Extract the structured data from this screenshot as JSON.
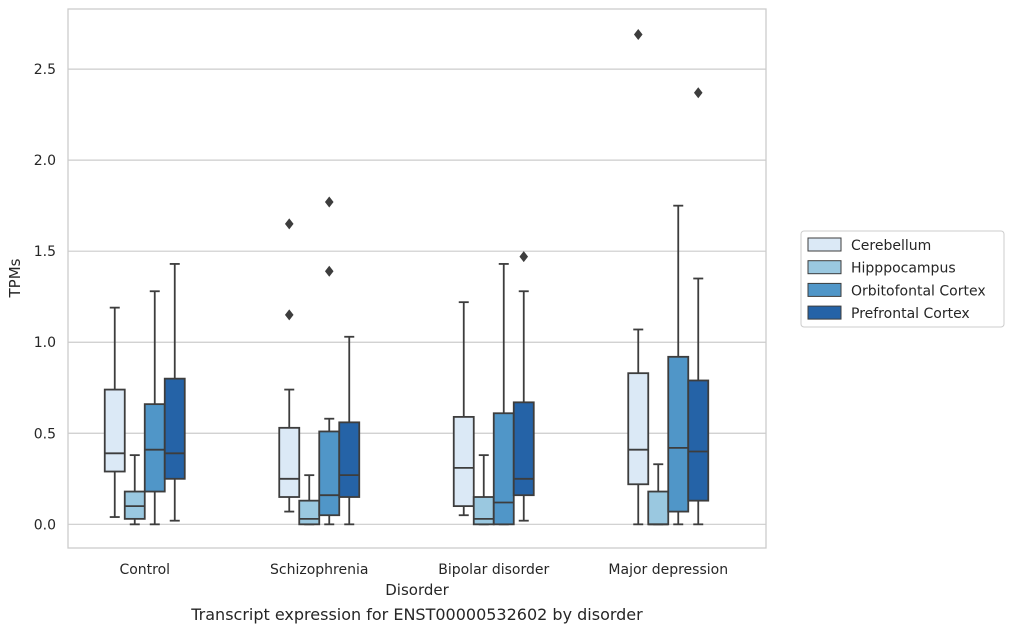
{
  "chart_data": {
    "type": "box",
    "xlabel": "Disorder",
    "ylabel": "TPMs",
    "caption": "Transcript expression for ENST00000532602 by disorder",
    "ylim": [
      -0.13,
      2.83
    ],
    "yticks": [
      0.0,
      0.5,
      1.0,
      1.5,
      2.0,
      2.5
    ],
    "ytick_labels": [
      "0.0",
      "0.5",
      "1.0",
      "1.5",
      "2.0",
      "2.5"
    ],
    "grid": "horizontal",
    "legend_position": "right",
    "categories": [
      "Control",
      "Schizophrenia",
      "Bipolar disorder",
      "Major depression"
    ],
    "series": [
      {
        "name": "Cerebellum",
        "color": "#dbe9f6",
        "boxes": [
          {
            "whislo": 0.04,
            "q1": 0.29,
            "med": 0.39,
            "q3": 0.74,
            "whishi": 1.19,
            "fliers": []
          },
          {
            "whislo": 0.07,
            "q1": 0.15,
            "med": 0.25,
            "q3": 0.53,
            "whishi": 0.74,
            "fliers": [
              1.15,
              1.65
            ]
          },
          {
            "whislo": 0.05,
            "q1": 0.1,
            "med": 0.31,
            "q3": 0.59,
            "whishi": 1.22,
            "fliers": []
          },
          {
            "whislo": 0.0,
            "q1": 0.22,
            "med": 0.41,
            "q3": 0.83,
            "whishi": 1.07,
            "fliers": [
              2.69
            ]
          }
        ]
      },
      {
        "name": "Hipppocampus",
        "color": "#9ac8e0",
        "boxes": [
          {
            "whislo": 0.0,
            "q1": 0.03,
            "med": 0.1,
            "q3": 0.18,
            "whishi": 0.38,
            "fliers": []
          },
          {
            "whislo": 0.0,
            "q1": 0.0,
            "med": 0.03,
            "q3": 0.13,
            "whishi": 0.27,
            "fliers": []
          },
          {
            "whislo": 0.0,
            "q1": 0.0,
            "med": 0.03,
            "q3": 0.15,
            "whishi": 0.38,
            "fliers": []
          },
          {
            "whislo": 0.0,
            "q1": 0.0,
            "med": 0.0,
            "q3": 0.18,
            "whishi": 0.33,
            "fliers": []
          }
        ]
      },
      {
        "name": "Orbitofontal Cortex",
        "color": "#5096c8",
        "boxes": [
          {
            "whislo": 0.0,
            "q1": 0.18,
            "med": 0.41,
            "q3": 0.66,
            "whishi": 1.28,
            "fliers": []
          },
          {
            "whislo": 0.0,
            "q1": 0.05,
            "med": 0.16,
            "q3": 0.51,
            "whishi": 0.58,
            "fliers": [
              1.39,
              1.77
            ]
          },
          {
            "whislo": 0.0,
            "q1": 0.0,
            "med": 0.12,
            "q3": 0.61,
            "whishi": 1.43,
            "fliers": []
          },
          {
            "whislo": 0.0,
            "q1": 0.07,
            "med": 0.42,
            "q3": 0.92,
            "whishi": 1.75,
            "fliers": []
          }
        ]
      },
      {
        "name": "Prefrontal Cortex",
        "color": "#2563a7",
        "boxes": [
          {
            "whislo": 0.02,
            "q1": 0.25,
            "med": 0.39,
            "q3": 0.8,
            "whishi": 1.43,
            "fliers": []
          },
          {
            "whislo": 0.0,
            "q1": 0.15,
            "med": 0.27,
            "q3": 0.56,
            "whishi": 1.03,
            "fliers": []
          },
          {
            "whislo": 0.02,
            "q1": 0.16,
            "med": 0.25,
            "q3": 0.67,
            "whishi": 1.28,
            "fliers": [
              1.47
            ]
          },
          {
            "whislo": 0.0,
            "q1": 0.13,
            "med": 0.4,
            "q3": 0.79,
            "whishi": 1.35,
            "fliers": [
              2.37
            ]
          }
        ]
      }
    ]
  }
}
